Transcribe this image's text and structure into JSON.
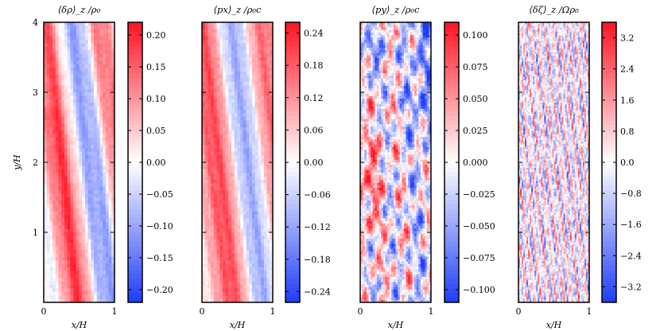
{
  "chart_data": [
    {
      "type": "heatmap",
      "title": "⟨δρ⟩_z /ρ₀",
      "xlabel": "x/H",
      "ylabel": "y/H",
      "xlim": [
        0,
        1
      ],
      "ylim": [
        0,
        4
      ],
      "x_ticks": [
        "0",
        "1"
      ],
      "y_ticks": [
        "1",
        "2",
        "3",
        "4"
      ],
      "colorbar": {
        "range": [
          -0.22,
          0.22
        ],
        "ticks": [
          "0.20",
          "0.15",
          "0.10",
          "0.05",
          "0.00",
          "−0.05",
          "−0.10",
          "−0.15",
          "−0.20"
        ],
        "tick_values": [
          0.2,
          0.15,
          0.1,
          0.05,
          0.0,
          -0.05,
          -0.1,
          -0.15,
          -0.2
        ]
      },
      "colormap": "bwr",
      "pattern": "broad-diagonal-bands"
    },
    {
      "type": "heatmap",
      "title": "⟨px⟩_z /ρ₀c",
      "xlabel": "x/H",
      "ylabel": "",
      "xlim": [
        0,
        1
      ],
      "ylim": [
        0,
        4
      ],
      "x_ticks": [
        "0",
        "1"
      ],
      "y_ticks": [],
      "colorbar": {
        "range": [
          -0.26,
          0.26
        ],
        "ticks": [
          "0.24",
          "0.18",
          "0.12",
          "0.06",
          "0.00",
          "−0.06",
          "−0.12",
          "−0.18",
          "−0.24"
        ],
        "tick_values": [
          0.24,
          0.18,
          0.12,
          0.06,
          0.0,
          -0.06,
          -0.12,
          -0.18,
          -0.24
        ]
      },
      "colormap": "bwr",
      "pattern": "broad-diagonal-bands"
    },
    {
      "type": "heatmap",
      "title": "⟨py⟩_z /ρ₀c",
      "xlabel": "x/H",
      "ylabel": "",
      "xlim": [
        0,
        1
      ],
      "ylim": [
        0,
        4
      ],
      "x_ticks": [
        "0",
        "1"
      ],
      "y_ticks": [],
      "colorbar": {
        "range": [
          -0.11,
          0.11
        ],
        "ticks": [
          "0.100",
          "0.075",
          "0.050",
          "0.025",
          "0.000",
          "−0.025",
          "−0.050",
          "−0.075",
          "−0.100"
        ],
        "tick_values": [
          0.1,
          0.075,
          0.05,
          0.025,
          0.0,
          -0.025,
          -0.05,
          -0.075,
          -0.1
        ]
      },
      "colormap": "bwr",
      "pattern": "blotchy-turbulent"
    },
    {
      "type": "heatmap",
      "title": "⟨δζ⟩_z /Ωρ₀",
      "xlabel": "x/H",
      "ylabel": "",
      "xlim": [
        0,
        1
      ],
      "ylim": [
        0,
        4
      ],
      "x_ticks": [
        "0",
        "1"
      ],
      "y_ticks": [],
      "colorbar": {
        "range": [
          -3.6,
          3.6
        ],
        "ticks": [
          "3.2",
          "2.4",
          "1.6",
          "0.8",
          "0.0",
          "−0.8",
          "−1.6",
          "−2.4",
          "−3.2"
        ],
        "tick_values": [
          3.2,
          2.4,
          1.6,
          0.8,
          0.0,
          -0.8,
          -1.6,
          -2.4,
          -3.2
        ]
      },
      "colormap": "bwr",
      "pattern": "fine-streaks"
    }
  ]
}
